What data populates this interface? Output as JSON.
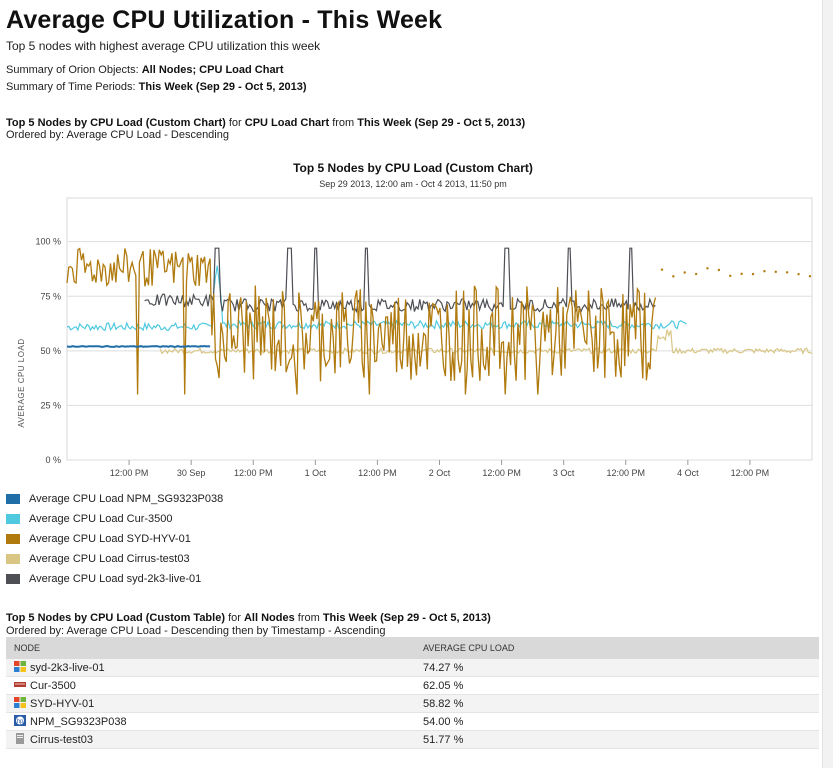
{
  "report": {
    "title": "Average CPU Utilization - This Week",
    "subtitle": "Top 5 nodes with highest average CPU utilization this week",
    "summary_objects_label": "Summary of Orion Objects:",
    "summary_objects_value": "All Nodes; CPU Load Chart",
    "summary_periods_label": "Summary of Time Periods:",
    "summary_periods_value": "This Week (Sep 29 - Oct 5, 2013)"
  },
  "chart_section": {
    "name": "Top 5 Nodes by CPU Load (Custom Chart)",
    "for_word": "for",
    "object": "CPU Load Chart",
    "from_word": "from",
    "period": "This Week (Sep 29 - Oct 5, 2013)",
    "ordered_by": "Ordered by: Average CPU Load - Descending"
  },
  "chart_data": {
    "type": "line",
    "title": "Top 5 Nodes by CPU Load (Custom Chart)",
    "subtitle": "Sep 29 2013, 12:00 am - Oct 4 2013, 11:50 pm",
    "ylabel": "AVERAGE CPU LOAD",
    "xlabel": "",
    "ylim": [
      0,
      120
    ],
    "yticks": [
      0,
      25,
      50,
      75,
      100
    ],
    "ytick_labels": [
      "0 %",
      "25 %",
      "50 %",
      "75 %",
      "100 %"
    ],
    "xlim_hours": [
      0,
      144
    ],
    "xtick_hours": [
      12,
      24,
      36,
      48,
      60,
      72,
      84,
      96,
      108,
      120,
      132
    ],
    "xtick_labels": [
      "12:00 PM",
      "30 Sep",
      "12:00 PM",
      "1 Oct",
      "12:00 PM",
      "2 Oct",
      "12:00 PM",
      "3 Oct",
      "12:00 PM",
      "4 Oct",
      "12:00 PM"
    ],
    "grid": true,
    "legend_position": "bottom-left",
    "series": [
      {
        "name": "Average CPU Load NPM_SG9323P038",
        "color": "#1f6ea8",
        "profile": "flat",
        "start": 0,
        "end": 28,
        "mean": 52,
        "noise": 0.4,
        "description_points": [
          [
            0,
            52
          ],
          [
            28,
            52
          ]
        ]
      },
      {
        "name": "Average CPU Load Cur-3500",
        "color": "#4fc9e0",
        "profile": "steady",
        "start": 0,
        "end": 120,
        "mean": 62,
        "noise": 1.8,
        "spikes": [
          [
            29,
            90
          ]
        ]
      },
      {
        "name": "Average CPU Load SYD-HYV-01",
        "color": "#b07a0e",
        "profile": "volatile",
        "start": 0,
        "end": 114,
        "mean_before_day2": 88,
        "mean_after_day2": 58,
        "noise": 22
      },
      {
        "name": "Average CPU Load Cirrus-test03",
        "color": "#d9c685",
        "profile": "low",
        "start": 18,
        "end": 144,
        "mean": 50,
        "noise": 1.2,
        "dotted_after": 114,
        "dotted_mean": 86
      },
      {
        "name": "Average CPU Load syd-2k3-live-01",
        "color": "#4d4f55",
        "profile": "spiky",
        "start": 15,
        "end": 114,
        "mean": 73,
        "noise": 2.5,
        "spikes_at": [
          29,
          43,
          48,
          58,
          85,
          97,
          109
        ]
      }
    ]
  },
  "table_section": {
    "name": "Top 5 Nodes by CPU Load (Custom Table)",
    "for_word": "for",
    "object": "All Nodes",
    "from_word": "from",
    "period": "This Week (Sep 29 - Oct 5, 2013)",
    "ordered_by": "Ordered by: Average CPU Load - Descending then by Timestamp - Ascending",
    "headers": [
      "NODE",
      "AVERAGE CPU LOAD"
    ],
    "rows": [
      {
        "icon": "windows-icon",
        "node": "syd-2k3-live-01",
        "load": "74.27 %"
      },
      {
        "icon": "router-icon",
        "node": "Cur-3500",
        "load": "62.05 %"
      },
      {
        "icon": "windows-icon",
        "node": "SYD-HYV-01",
        "load": "58.82 %"
      },
      {
        "icon": "hp-icon",
        "node": "NPM_SG9323P038",
        "load": "54.00 %"
      },
      {
        "icon": "server-icon",
        "node": "Cirrus-test03",
        "load": "51.77 %"
      }
    ]
  }
}
